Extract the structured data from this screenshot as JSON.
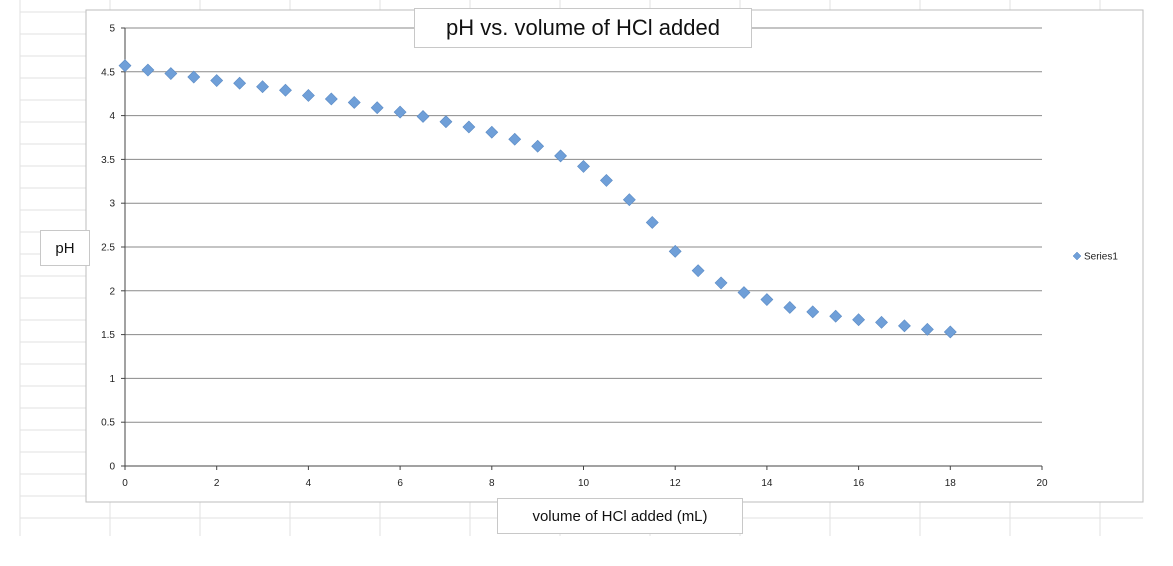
{
  "chart_data": {
    "type": "scatter",
    "title": "pH vs. volume of HCl added",
    "xlabel": "volume of HCl added (mL)",
    "ylabel": "pH",
    "xlim": [
      0,
      20
    ],
    "ylim": [
      0,
      5
    ],
    "xticks": [
      "0",
      "2",
      "4",
      "6",
      "8",
      "10",
      "12",
      "14",
      "16",
      "18",
      "20"
    ],
    "yticks": [
      "0",
      "0.5",
      "1",
      "1.5",
      "2",
      "2.5",
      "3",
      "3.5",
      "4",
      "4.5",
      "5"
    ],
    "grid": "horizontal",
    "legend_position": "right",
    "marker_color": "#6f9fd8",
    "series": [
      {
        "name": "Series1",
        "x": [
          0,
          0.5,
          1,
          1.5,
          2,
          2.5,
          3,
          3.5,
          4,
          4.5,
          5,
          5.5,
          6,
          6.5,
          7,
          7.5,
          8,
          8.5,
          9,
          9.5,
          10,
          10.5,
          11,
          11.5,
          12,
          12.5,
          13,
          13.5,
          14,
          14.5,
          15,
          15.5,
          16,
          16.5,
          17,
          17.5,
          18
        ],
        "y": [
          4.57,
          4.52,
          4.48,
          4.44,
          4.4,
          4.37,
          4.33,
          4.29,
          4.23,
          4.19,
          4.15,
          4.09,
          4.04,
          3.99,
          3.93,
          3.87,
          3.81,
          3.73,
          3.65,
          3.54,
          3.42,
          3.26,
          3.04,
          2.78,
          2.45,
          2.23,
          2.09,
          1.98,
          1.9,
          1.81,
          1.76,
          1.71,
          1.67,
          1.64,
          1.6,
          1.56,
          1.53
        ]
      }
    ]
  }
}
